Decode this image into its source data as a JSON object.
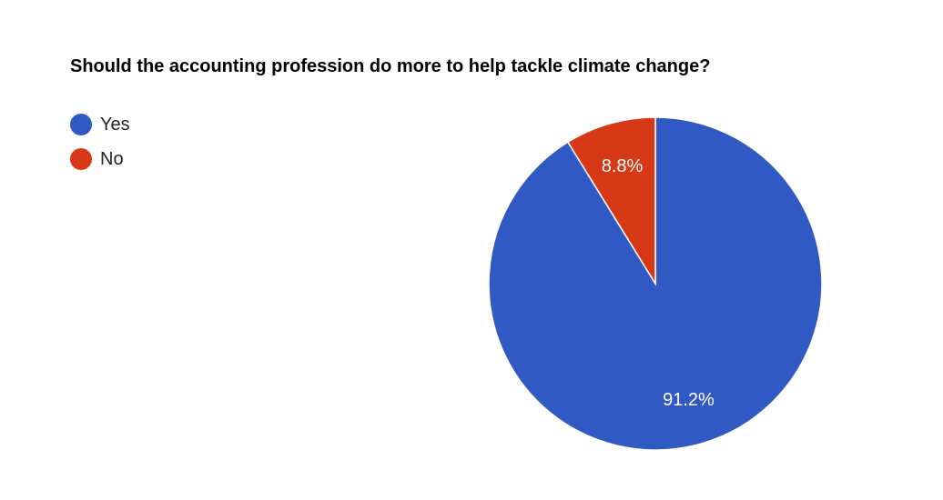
{
  "chart_data": {
    "type": "pie",
    "title": "Should the accounting profession do more to help tackle climate change?",
    "categories": [
      "Yes",
      "No"
    ],
    "values": [
      91.2,
      8.8
    ],
    "value_labels": [
      "91.2%",
      "8.8%"
    ],
    "colors": [
      "#3059c4",
      "#d73916"
    ],
    "legend_position": "top-left"
  }
}
